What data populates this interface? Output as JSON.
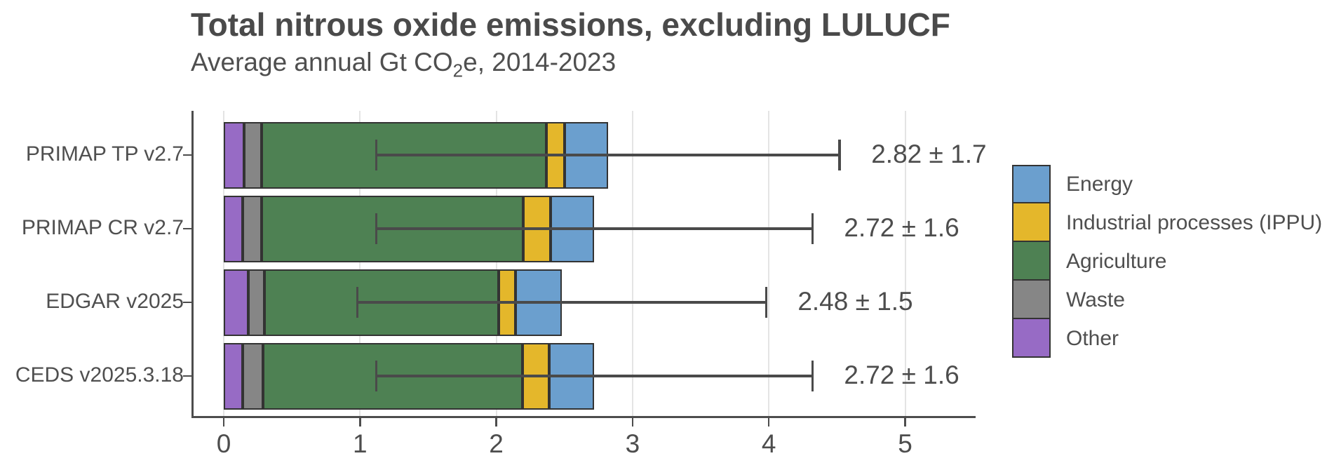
{
  "header": {
    "title": "Total nitrous oxide emissions, excluding LULUCF",
    "subtitle_prefix": "Average annual Gt CO",
    "subtitle_sub": "2",
    "subtitle_suffix": "e, 2014-2023"
  },
  "colors": {
    "energy_blue": "#6B9FCE",
    "ippu_yellow": "#E4B72B",
    "agriculture_green": "#4E8153",
    "waste_gray": "#868686",
    "other_purple": "#976BC5",
    "segment_border": "#333333",
    "axis_line": "#4d4d4d",
    "axis_text": "#4d4d4d",
    "gridline": "#e4e4e4",
    "error_bar": "#4a4a4a"
  },
  "chart_data": {
    "type": "bar",
    "orientation": "horizontal",
    "stacked": true,
    "title": "Total nitrous oxide emissions, excluding LULUCF",
    "subtitle": "Average annual Gt CO2e, 2014-2023",
    "xlabel": "",
    "ylabel": "",
    "xlim": [
      -0.24,
      5.5
    ],
    "x_ticks": [
      0,
      1,
      2,
      3,
      4,
      5
    ],
    "grid": "vertical-major",
    "legend_position": "right",
    "categories": [
      "PRIMAP TP v2.7",
      "PRIMAP CR v2.7",
      "EDGAR v2025",
      "CEDS v2025.3.18"
    ],
    "series": [
      {
        "name": "Other",
        "color_key": "other_purple",
        "values": [
          0.15,
          0.14,
          0.18,
          0.14
        ]
      },
      {
        "name": "Waste",
        "color_key": "waste_gray",
        "values": [
          0.13,
          0.14,
          0.12,
          0.15
        ]
      },
      {
        "name": "Agriculture",
        "color_key": "agriculture_green",
        "values": [
          2.09,
          1.92,
          1.72,
          1.9
        ]
      },
      {
        "name": "Industrial processes (IPPU)",
        "color_key": "ippu_yellow",
        "values": [
          0.13,
          0.2,
          0.12,
          0.2
        ]
      },
      {
        "name": "Energy",
        "color_key": "energy_blue",
        "values": [
          0.32,
          0.32,
          0.34,
          0.33
        ]
      }
    ],
    "totals": [
      2.82,
      2.72,
      2.48,
      2.72
    ],
    "uncertainties": [
      1.7,
      1.6,
      1.5,
      1.6
    ],
    "error_bars": [
      {
        "lower": 1.12,
        "upper": 4.52
      },
      {
        "lower": 1.12,
        "upper": 4.32
      },
      {
        "lower": 0.98,
        "upper": 3.98
      },
      {
        "lower": 1.12,
        "upper": 4.32
      }
    ],
    "value_labels": [
      "2.82 ± 1.7",
      "2.72 ± 1.6",
      "2.48 ± 1.5",
      "2.72 ± 1.6"
    ],
    "legend": [
      {
        "label": "Energy",
        "color_key": "energy_blue"
      },
      {
        "label": "Industrial processes (IPPU)",
        "color_key": "ippu_yellow"
      },
      {
        "label": "Agriculture",
        "color_key": "agriculture_green"
      },
      {
        "label": "Waste",
        "color_key": "waste_gray"
      },
      {
        "label": "Other",
        "color_key": "other_purple"
      }
    ]
  }
}
